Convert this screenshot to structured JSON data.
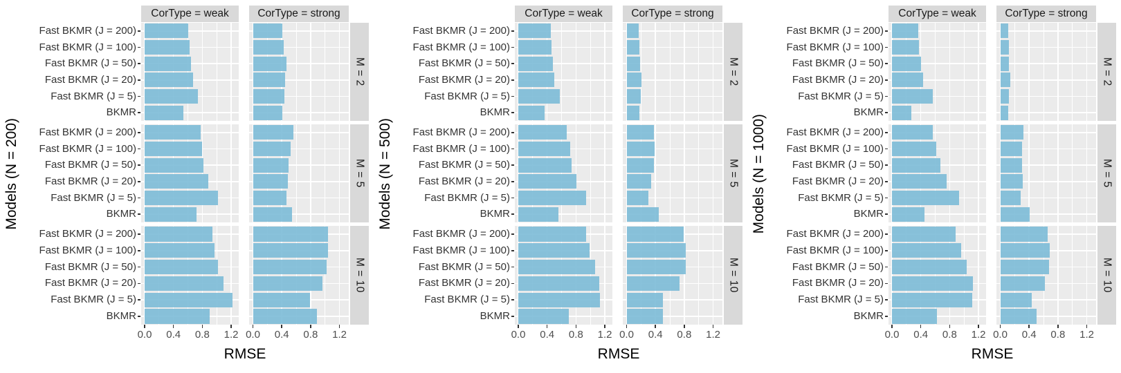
{
  "chart_data": {
    "type": "bar",
    "orientation": "horizontal",
    "title": "",
    "xlabel": "RMSE",
    "x_ticks": [
      0.0,
      0.4,
      0.8,
      1.2
    ],
    "x_tick_labels": [
      "0.0",
      "0.4",
      "0.8",
      "1.2"
    ],
    "xlim": [
      0,
      1.35
    ],
    "grid": "on",
    "legend": "none",
    "bar_color_effective": "#85BFD9",
    "panel_bg": "#EBEBEB",
    "strip_bg": "#D9D9D9",
    "gridline_color": "#FFFFFF",
    "categories_top_to_bottom": [
      "Fast BKMR (J = 200)",
      "Fast BKMR (J = 100)",
      "Fast BKMR (J = 50)",
      "Fast BKMR (J = 20)",
      "Fast BKMR (J = 5)",
      "BKMR"
    ],
    "col_facets": [
      "CorType = weak",
      "CorType = strong"
    ],
    "row_facets": [
      "M = 2",
      "M = 5",
      "M = 10"
    ],
    "groups": [
      {
        "y_axis_title": "Models (N = 200)",
        "rows": [
          {
            "row_facet": "M = 2",
            "weak": [
              0.6,
              0.62,
              0.64,
              0.67,
              0.74,
              0.54
            ],
            "strong": [
              0.41,
              0.43,
              0.47,
              0.45,
              0.44,
              0.41
            ]
          },
          {
            "row_facet": "M = 5",
            "weak": [
              0.78,
              0.8,
              0.82,
              0.88,
              1.02,
              0.72
            ],
            "strong": [
              0.56,
              0.52,
              0.49,
              0.48,
              0.47,
              0.54
            ]
          },
          {
            "row_facet": "M = 10",
            "weak": [
              0.94,
              0.97,
              1.02,
              1.09,
              1.22,
              0.9
            ],
            "strong": [
              1.04,
              1.04,
              1.02,
              0.96,
              0.79,
              0.89
            ]
          }
        ]
      },
      {
        "y_axis_title": "Models (N = 500)",
        "rows": [
          {
            "row_facet": "M = 2",
            "weak": [
              0.45,
              0.46,
              0.48,
              0.5,
              0.58,
              0.36
            ],
            "strong": [
              0.17,
              0.18,
              0.19,
              0.21,
              0.2,
              0.18
            ]
          },
          {
            "row_facet": "M = 5",
            "weak": [
              0.67,
              0.72,
              0.74,
              0.81,
              0.94,
              0.56
            ],
            "strong": [
              0.38,
              0.39,
              0.38,
              0.34,
              0.3,
              0.45
            ]
          },
          {
            "row_facet": "M = 10",
            "weak": [
              0.94,
              0.99,
              1.07,
              1.12,
              1.13,
              0.7
            ],
            "strong": [
              0.79,
              0.82,
              0.82,
              0.73,
              0.5,
              0.5
            ]
          }
        ]
      },
      {
        "y_axis_title": "Models (N = 1000)",
        "rows": [
          {
            "row_facet": "M = 2",
            "weak": [
              0.36,
              0.37,
              0.4,
              0.43,
              0.57,
              0.27
            ],
            "strong": [
              0.11,
              0.12,
              0.12,
              0.14,
              0.12,
              0.11
            ]
          },
          {
            "row_facet": "M = 5",
            "weak": [
              0.57,
              0.61,
              0.67,
              0.76,
              0.93,
              0.45
            ],
            "strong": [
              0.32,
              0.3,
              0.3,
              0.31,
              0.28,
              0.41
            ]
          },
          {
            "row_facet": "M = 10",
            "weak": [
              0.88,
              0.96,
              1.04,
              1.12,
              1.11,
              0.62
            ],
            "strong": [
              0.66,
              0.69,
              0.68,
              0.62,
              0.44,
              0.5
            ]
          }
        ]
      }
    ]
  }
}
